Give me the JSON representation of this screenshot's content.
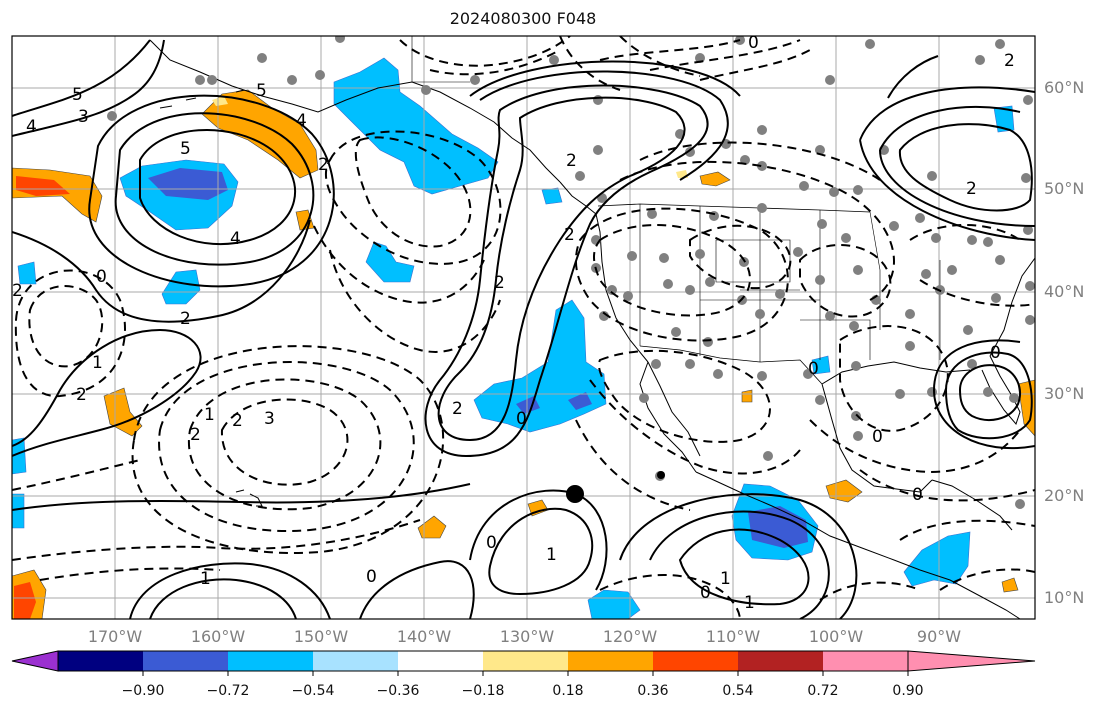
{
  "title": "2024080300 F048",
  "lat_labels": [
    "60°N",
    "50°N",
    "40°N",
    "30°N",
    "20°N",
    "10°N"
  ],
  "lon_labels": [
    "170°W",
    "160°W",
    "150°W",
    "140°W",
    "130°W",
    "120°W",
    "110°W",
    "100°W",
    "90°W"
  ],
  "colorbar": {
    "tick_labels": [
      "−0.90",
      "−0.72",
      "−0.54",
      "−0.36",
      "−0.18",
      "0.18",
      "0.36",
      "0.54",
      "0.72",
      "0.90"
    ],
    "colors": [
      "#9b30d0",
      "#000080",
      "#3b5bd4",
      "#00bfff",
      "#a8e2ff",
      "#ffffff",
      "#ffe88a",
      "#ffa500",
      "#ff4500",
      "#b22222",
      "#ff8fb0"
    ]
  },
  "contour_labels": [
    "5",
    "3",
    "4",
    "5",
    "5",
    "4",
    "2",
    "4",
    "2",
    "0",
    "2",
    "1",
    "2",
    "1",
    "2",
    "3",
    "2",
    "2",
    "2",
    "0",
    "1",
    "0",
    "1",
    "1",
    "0",
    "1",
    "0",
    "2",
    "2",
    "0",
    "0",
    "2",
    "0",
    "0",
    "0",
    "2"
  ]
}
